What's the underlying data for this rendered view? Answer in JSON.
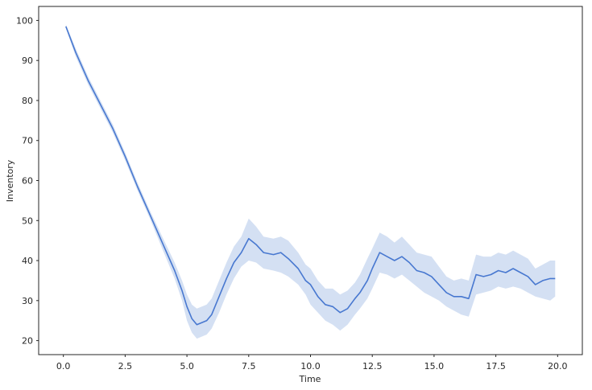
{
  "chart_data": {
    "type": "line",
    "title": "",
    "xlabel": "Time",
    "ylabel": "Inventory",
    "xlim": [
      -1.0,
      21.0
    ],
    "ylim": [
      16.5,
      103.5
    ],
    "xticks": [
      "0.0",
      "2.5",
      "5.0",
      "7.5",
      "10.0",
      "12.5",
      "15.0",
      "17.5",
      "20.0"
    ],
    "xtick_values": [
      0,
      2.5,
      5,
      7.5,
      10,
      12.5,
      15,
      17.5,
      20
    ],
    "yticks": [
      "20",
      "30",
      "40",
      "50",
      "60",
      "70",
      "80",
      "90",
      "100"
    ],
    "ytick_values": [
      20,
      30,
      40,
      50,
      60,
      70,
      80,
      90,
      100
    ],
    "grid": false,
    "colors": {
      "line": "#4878d0",
      "band": "#c6d5ef",
      "frame": "#262626"
    },
    "series": [
      {
        "x": [
          0.1,
          0.5,
          1.0,
          1.5,
          2.0,
          2.5,
          3.0,
          3.5,
          4.0,
          4.5,
          4.8,
          5.0,
          5.2,
          5.4,
          5.6,
          5.8,
          6.0,
          6.3,
          6.6,
          6.9,
          7.2,
          7.5,
          7.8,
          8.1,
          8.5,
          8.8,
          9.1,
          9.5,
          9.8,
          10.0,
          10.3,
          10.6,
          10.9,
          11.2,
          11.5,
          11.8,
          12.0,
          12.3,
          12.5,
          12.8,
          13.1,
          13.4,
          13.7,
          14.0,
          14.3,
          14.6,
          14.9,
          15.2,
          15.5,
          15.8,
          16.1,
          16.4,
          16.7,
          17.0,
          17.3,
          17.6,
          17.9,
          18.2,
          18.5,
          18.8,
          19.1,
          19.4,
          19.7,
          19.9
        ],
        "y": [
          98.5,
          92.0,
          85.0,
          79.0,
          73.0,
          66.0,
          58.5,
          51.5,
          44.5,
          37.5,
          32.5,
          28.5,
          25.5,
          24.0,
          24.5,
          25.0,
          26.5,
          31.0,
          35.5,
          39.5,
          42.0,
          45.5,
          44.0,
          42.0,
          41.5,
          42.0,
          40.5,
          38.0,
          35.0,
          34.0,
          31.0,
          29.0,
          28.5,
          27.0,
          28.0,
          30.5,
          32.0,
          35.0,
          38.0,
          42.0,
          41.0,
          40.0,
          41.0,
          39.5,
          37.5,
          37.0,
          36.0,
          34.0,
          32.0,
          31.0,
          31.0,
          30.5,
          36.5,
          36.0,
          36.5,
          37.5,
          37.0,
          38.0,
          37.0,
          36.0,
          34.0,
          35.0,
          35.5,
          35.5
        ],
        "lower": [
          98.0,
          91.0,
          84.0,
          78.0,
          72.0,
          65.0,
          57.5,
          50.5,
          43.0,
          35.5,
          30.0,
          25.0,
          22.0,
          20.5,
          21.0,
          21.5,
          23.0,
          27.0,
          31.5,
          35.5,
          38.5,
          40.0,
          39.5,
          38.0,
          37.5,
          37.0,
          36.0,
          34.0,
          31.5,
          29.0,
          27.0,
          25.0,
          24.0,
          22.5,
          24.0,
          26.5,
          28.0,
          30.5,
          33.0,
          37.0,
          36.5,
          35.5,
          36.5,
          35.0,
          33.5,
          32.0,
          31.0,
          30.0,
          28.5,
          27.5,
          26.5,
          26.0,
          31.5,
          32.0,
          32.5,
          33.5,
          33.0,
          33.5,
          33.0,
          32.0,
          31.0,
          30.5,
          30.0,
          31.0
        ],
        "upper": [
          99.0,
          93.0,
          86.0,
          80.0,
          74.0,
          67.0,
          59.5,
          52.5,
          46.0,
          39.5,
          35.0,
          31.5,
          29.0,
          28.0,
          28.5,
          29.0,
          30.5,
          35.0,
          39.5,
          43.5,
          46.0,
          50.5,
          48.5,
          46.0,
          45.5,
          46.0,
          45.0,
          42.0,
          39.0,
          38.0,
          35.0,
          33.0,
          33.0,
          31.5,
          32.5,
          34.5,
          36.5,
          40.5,
          43.0,
          47.0,
          46.0,
          44.5,
          46.0,
          44.0,
          42.0,
          41.5,
          41.0,
          38.5,
          36.0,
          35.0,
          35.5,
          35.0,
          41.5,
          41.0,
          41.0,
          42.0,
          41.5,
          42.5,
          41.5,
          40.5,
          38.0,
          39.0,
          40.0,
          40.0
        ]
      }
    ]
  }
}
